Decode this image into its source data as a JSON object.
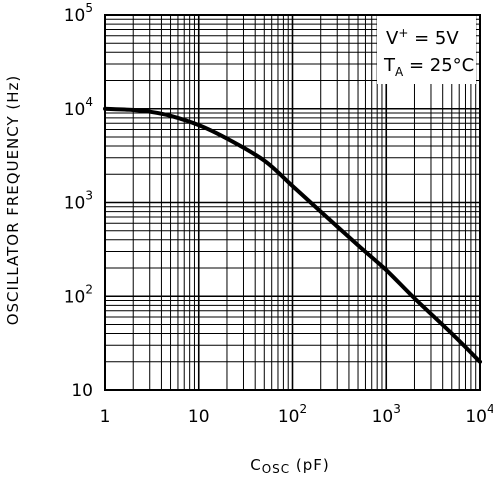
{
  "chart_data": {
    "type": "line",
    "xscale": "log",
    "yscale": "log",
    "xlim": [
      1,
      10000
    ],
    "ylim": [
      10,
      100000
    ],
    "grid": true,
    "xlabel": {
      "main": "C",
      "sub": "OSC",
      "unit": " (pF)"
    },
    "ylabel": "OSCILLATOR FREQUENCY (Hz)",
    "x_ticks": [
      {
        "base": "1",
        "exp": ""
      },
      {
        "base": "10",
        "exp": ""
      },
      {
        "base": "10",
        "exp": "2"
      },
      {
        "base": "10",
        "exp": "3"
      },
      {
        "base": "10",
        "exp": "4"
      }
    ],
    "y_ticks": [
      {
        "base": "10",
        "exp": ""
      },
      {
        "base": "10",
        "exp": "2"
      },
      {
        "base": "10",
        "exp": "3"
      },
      {
        "base": "10",
        "exp": "4"
      },
      {
        "base": "10",
        "exp": "5"
      }
    ],
    "conditions": {
      "line1": {
        "text": "V",
        "sup": "+",
        "rest": " = 5V"
      },
      "line2": {
        "text": "T",
        "sub": "A",
        "rest": " = 25°C"
      }
    },
    "series": [
      {
        "x": [
          1,
          2,
          3,
          5,
          10,
          20,
          50,
          100,
          200,
          500,
          1000,
          2000,
          5000,
          10000
        ],
        "y": [
          10000,
          9700,
          9300,
          8400,
          6700,
          4800,
          2800,
          1500,
          800,
          350,
          190,
          95,
          40,
          20
        ]
      }
    ]
  }
}
